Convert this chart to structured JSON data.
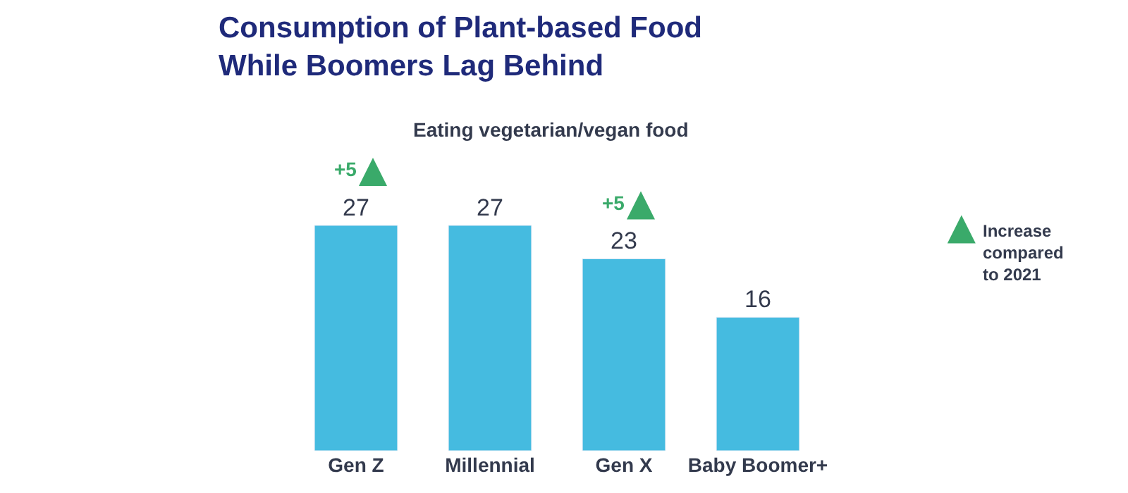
{
  "chart_data": {
    "type": "bar",
    "title": "Consumption of Plant-based Food\nWhile Boomers Lag Behind",
    "subtitle": "Eating vegetarian/vegan food",
    "categories": [
      "Gen Z",
      "Millennial",
      "Gen X",
      "Baby Boomer+"
    ],
    "values": [
      27,
      27,
      23,
      16
    ],
    "color": "#45bbe0",
    "data_labels": true,
    "annotations": [
      {
        "text": "+5",
        "x": "Gen Z",
        "y": 27
      },
      {
        "text": "+5",
        "x": "Gen X",
        "y": 23
      },
      "Increase\ncompared\nto 2021"
    ]
  }
}
